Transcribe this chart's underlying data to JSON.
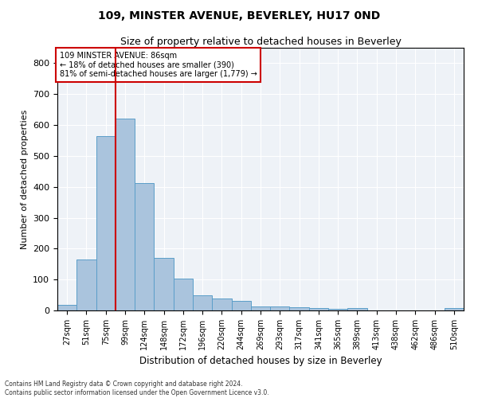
{
  "title": "109, MINSTER AVENUE, BEVERLEY, HU17 0ND",
  "subtitle": "Size of property relative to detached houses in Beverley",
  "xlabel": "Distribution of detached houses by size in Beverley",
  "ylabel": "Number of detached properties",
  "footnote1": "Contains HM Land Registry data © Crown copyright and database right 2024.",
  "footnote2": "Contains public sector information licensed under the Open Government Licence v3.0.",
  "annotation_line1": "109 MINSTER AVENUE: 86sqm",
  "annotation_line2": "← 18% of detached houses are smaller (390)",
  "annotation_line3": "81% of semi-detached houses are larger (1,779) →",
  "bar_color": "#aac4dd",
  "bar_edge_color": "#5a9ec9",
  "red_line_color": "#cc0000",
  "background_color": "#eef2f7",
  "categories": [
    "27sqm",
    "51sqm",
    "75sqm",
    "99sqm",
    "124sqm",
    "148sqm",
    "172sqm",
    "196sqm",
    "220sqm",
    "244sqm",
    "269sqm",
    "293sqm",
    "317sqm",
    "341sqm",
    "365sqm",
    "389sqm",
    "413sqm",
    "438sqm",
    "462sqm",
    "486sqm",
    "510sqm"
  ],
  "values": [
    18,
    165,
    565,
    620,
    412,
    170,
    103,
    50,
    38,
    30,
    14,
    13,
    10,
    8,
    6,
    7,
    0,
    0,
    0,
    0,
    7
  ],
  "red_line_x": 2.5,
  "ylim": [
    0,
    850
  ],
  "yticks": [
    0,
    100,
    200,
    300,
    400,
    500,
    600,
    700,
    800
  ]
}
